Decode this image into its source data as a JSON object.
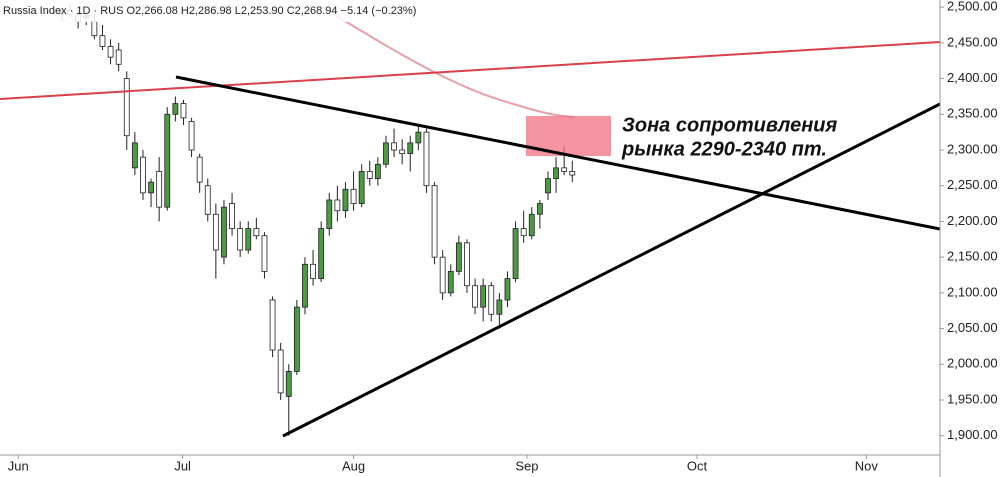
{
  "chart_data": {
    "type": "candlestick",
    "legend_text": "Russia Index · 1D · RUS  O2,266.08 H2,286.98 L2,253.90 C2,268.94 −5.14 (−0.23%)",
    "annotation": [
      "Зона сопротивления",
      "рынка 2290-2340 пт."
    ],
    "up_color": "#4c9a46",
    "down_color": "#ffffff",
    "open": [
      2490,
      2495,
      2490,
      2485,
      2480,
      2460,
      2445,
      2440,
      2400,
      2275,
      2290,
      2240,
      2270,
      2220,
      2350,
      2365,
      2340,
      2290,
      2250,
      2210,
      2150,
      2225,
      2190,
      2160,
      2190,
      2180,
      2090,
      2020,
      1955,
      1990,
      2080,
      2140,
      2120,
      2190,
      2230,
      2215,
      2245,
      2225,
      2270,
      2260,
      2280,
      2310,
      2300,
      2295,
      2310,
      2325,
      2250,
      2150,
      2100,
      2130,
      2170,
      2110,
      2080,
      2110,
      2070,
      2090,
      2120,
      2190,
      2180,
      2210,
      2240,
      2260,
      2275,
      2270
    ],
    "high": [
      2500,
      2505,
      2498,
      2495,
      2490,
      2475,
      2455,
      2450,
      2410,
      2325,
      2300,
      2260,
      2290,
      2360,
      2375,
      2370,
      2345,
      2295,
      2260,
      2225,
      2230,
      2240,
      2200,
      2200,
      2205,
      2185,
      2095,
      2030,
      2000,
      2090,
      2150,
      2160,
      2200,
      2240,
      2250,
      2255,
      2270,
      2280,
      2285,
      2290,
      2320,
      2330,
      2315,
      2320,
      2335,
      2330,
      2255,
      2160,
      2140,
      2180,
      2175,
      2120,
      2120,
      2115,
      2100,
      2130,
      2200,
      2215,
      2220,
      2230,
      2270,
      2290,
      2305,
      2285
    ],
    "low": [
      2480,
      2485,
      2470,
      2475,
      2455,
      2440,
      2420,
      2410,
      2300,
      2265,
      2230,
      2220,
      2200,
      2215,
      2340,
      2335,
      2290,
      2240,
      2200,
      2120,
      2140,
      2180,
      2150,
      2155,
      2175,
      2120,
      2010,
      1950,
      1900,
      1985,
      2070,
      2110,
      2115,
      2180,
      2200,
      2205,
      2215,
      2220,
      2250,
      2250,
      2275,
      2290,
      2280,
      2270,
      2300,
      2240,
      2140,
      2090,
      2095,
      2125,
      2100,
      2070,
      2060,
      2060,
      2050,
      2080,
      2115,
      2170,
      2175,
      2190,
      2230,
      2240,
      2265,
      2255
    ],
    "close": [
      2495,
      2490,
      2480,
      2488,
      2460,
      2445,
      2430,
      2420,
      2320,
      2310,
      2240,
      2255,
      2220,
      2350,
      2365,
      2345,
      2300,
      2255,
      2210,
      2160,
      2220,
      2190,
      2160,
      2190,
      2180,
      2130,
      2020,
      1960,
      1990,
      2080,
      2140,
      2120,
      2190,
      2230,
      2215,
      2245,
      2225,
      2270,
      2260,
      2280,
      2310,
      2300,
      2295,
      2310,
      2325,
      2250,
      2150,
      2100,
      2130,
      2170,
      2110,
      2080,
      2110,
      2070,
      2090,
      2120,
      2190,
      2180,
      2210,
      2225,
      2260,
      2275,
      2270,
      2265
    ],
    "xlim": [
      -7.65,
      108.4
    ],
    "xticks": [
      {
        "value": -5.4,
        "label": "Jun"
      },
      {
        "value": 14.9,
        "label": "Jul"
      },
      {
        "value": 36.0,
        "label": "Aug"
      },
      {
        "value": 57.4,
        "label": "Sep"
      },
      {
        "value": 78.4,
        "label": "Oct"
      },
      {
        "value": 99.3,
        "label": "Nov"
      }
    ],
    "ylim": [
      1873,
      2510
    ],
    "yticks": [
      {
        "value": 1900,
        "label": "1,900.00"
      },
      {
        "value": 1950,
        "label": "1,950.00"
      },
      {
        "value": 2000,
        "label": "2,000.00"
      },
      {
        "value": 2050,
        "label": "2,050.00"
      },
      {
        "value": 2100,
        "label": "2,100.00"
      },
      {
        "value": 2150,
        "label": "2,150.00"
      },
      {
        "value": 2200,
        "label": "2,200.00"
      },
      {
        "value": 2250,
        "label": "2,250.00"
      },
      {
        "value": 2300,
        "label": "2,300.00"
      },
      {
        "value": 2350,
        "label": "2,350.00"
      },
      {
        "value": 2400,
        "label": "2,400.00"
      },
      {
        "value": 2450,
        "label": "2,450.00"
      },
      {
        "value": 2500,
        "label": "2,500.00"
      }
    ]
  }
}
